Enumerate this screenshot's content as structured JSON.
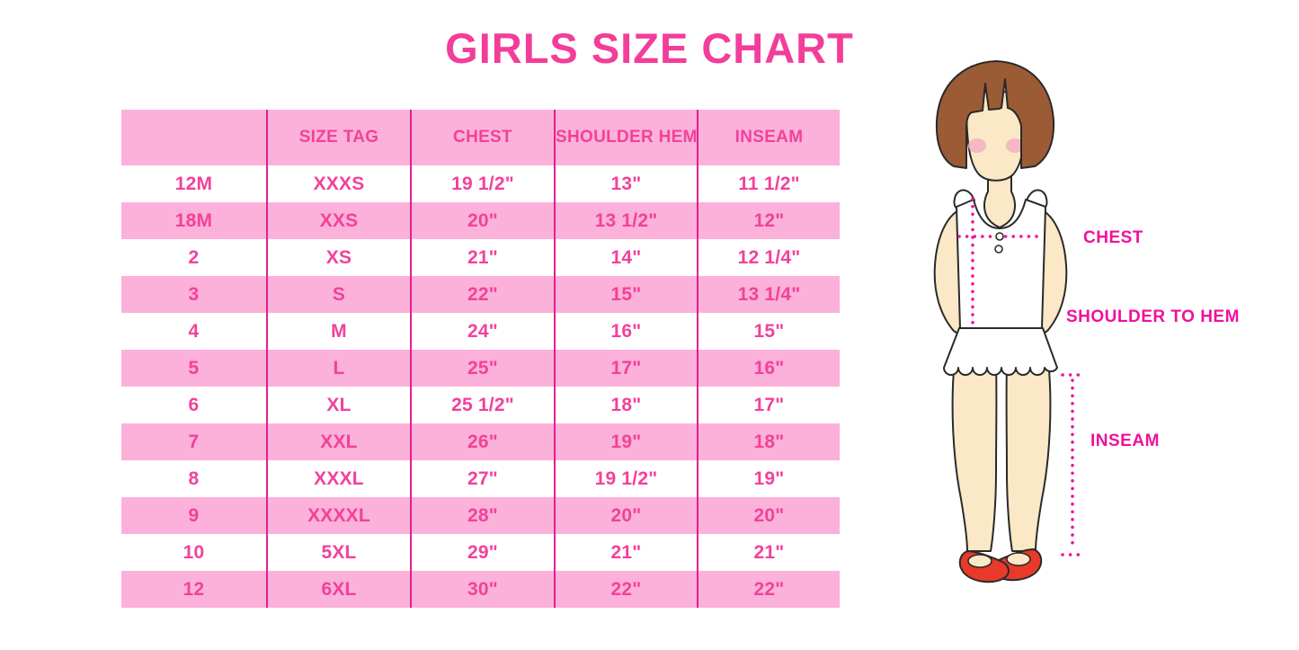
{
  "page": {
    "title": "GIRLS SIZE CHART"
  },
  "colors": {
    "title_pink": "#F23E9A",
    "row_pink": "#FBB1D9",
    "cell_text_pink": "#F2419B",
    "divider_magenta": "#E2208E",
    "label_magenta": "#F0109C",
    "hair_brown": "#9A5B35",
    "skin_tone": "#FAE8C6",
    "blush_pink": "#F4AFC2",
    "shoe_red": "#E8392B",
    "outline_black": "#2A2A2A"
  },
  "chart_data": {
    "type": "table",
    "title": "GIRLS SIZE CHART",
    "columns": [
      "",
      "SIZE TAG",
      "CHEST",
      "SHOULDER HEM",
      "INSEAM"
    ],
    "rows": [
      [
        "12M",
        "XXXS",
        "19 1/2\"",
        "13\"",
        "11 1/2\""
      ],
      [
        "18M",
        "XXS",
        "20\"",
        "13 1/2\"",
        "12\""
      ],
      [
        "2",
        "XS",
        "21\"",
        "14\"",
        "12 1/4\""
      ],
      [
        "3",
        "S",
        "22\"",
        "15\"",
        "13 1/4\""
      ],
      [
        "4",
        "M",
        "24\"",
        "16\"",
        "15\""
      ],
      [
        "5",
        "L",
        "25\"",
        "17\"",
        "16\""
      ],
      [
        "6",
        "XL",
        "25 1/2\"",
        "18\"",
        "17\""
      ],
      [
        "7",
        "XXL",
        "26\"",
        "19\"",
        "18\""
      ],
      [
        "8",
        "XXXL",
        "27\"",
        "19 1/2\"",
        "19\""
      ],
      [
        "9",
        "XXXXL",
        "28\"",
        "20\"",
        "20\""
      ],
      [
        "10",
        "5XL",
        "29\"",
        "21\"",
        "21\""
      ],
      [
        "12",
        "6XL",
        "30\"",
        "22\"",
        "22\""
      ]
    ],
    "row_striping": "alternating white and pink, header pink",
    "grid": "vertical magenta dividers only, no outer border"
  },
  "figure": {
    "description": "cartoon girl with brown bob hair, white ruffled top, red shoes",
    "labels": {
      "chest": "CHEST",
      "shoulder_to_hem": "SHOULDER TO HEM",
      "inseam": "INSEAM"
    }
  }
}
